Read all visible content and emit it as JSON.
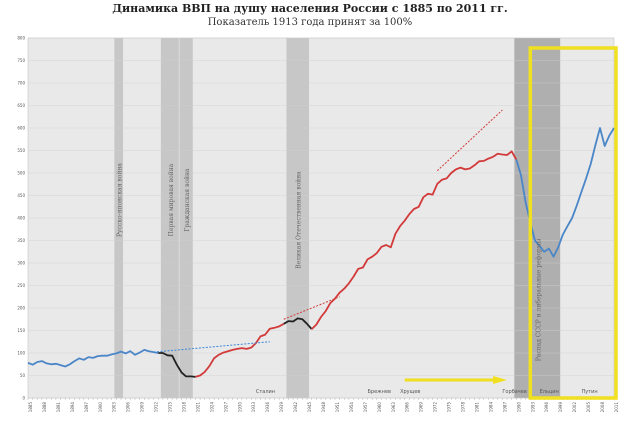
{
  "title": "Динамика ВВП на душу населения России с 1885 по 2011 гг.",
  "subtitle": "Показатель 1913 года принят за 100%",
  "chart_data": {
    "type": "line",
    "x_range": [
      1885,
      2011
    ],
    "ylim": [
      0,
      800
    ],
    "y_ticks": [
      0,
      50,
      100,
      150,
      200,
      250,
      300,
      350,
      400,
      450,
      500,
      550,
      600,
      650,
      700,
      750,
      800
    ],
    "grid": true,
    "series": [
      {
        "segment": "pre-revolution",
        "color": "#4a86c8",
        "x": [
          1885,
          1886,
          1887,
          1888,
          1889,
          1890,
          1891,
          1892,
          1893,
          1894,
          1895,
          1896,
          1897,
          1898,
          1899,
          1900,
          1901,
          1902,
          1903,
          1904,
          1905,
          1906,
          1907,
          1908,
          1909,
          1910,
          1911,
          1912,
          1913
        ],
        "y": [
          78,
          74,
          80,
          82,
          77,
          75,
          76,
          73,
          70,
          75,
          82,
          88,
          85,
          91,
          89,
          93,
          94,
          94,
          97,
          99,
          103,
          99,
          104,
          96,
          101,
          107,
          104,
          102,
          100
        ]
      },
      {
        "segment": "war-civil-war",
        "color": "#222222",
        "x": [
          1913,
          1914,
          1915,
          1916,
          1917,
          1918,
          1919,
          1920,
          1921
        ],
        "y": [
          100,
          100,
          95,
          94,
          74,
          57,
          48,
          48,
          47
        ]
      },
      {
        "segment": "soviet",
        "color": "#d23a3a",
        "x": [
          1921,
          1922,
          1923,
          1924,
          1925,
          1926,
          1927,
          1928,
          1929,
          1930,
          1931,
          1932,
          1933,
          1934,
          1935,
          1936,
          1937,
          1938,
          1939,
          1940
        ],
        "y": [
          47,
          50,
          58,
          71,
          88,
          96,
          101,
          104,
          107,
          109,
          111,
          109,
          112,
          122,
          137,
          141,
          154,
          156,
          159,
          165
        ]
      },
      {
        "segment": "ww2",
        "color": "#222222",
        "x": [
          1940,
          1941,
          1942,
          1943,
          1944,
          1945,
          1946
        ],
        "y": [
          165,
          171,
          170,
          177,
          175,
          165,
          153
        ]
      },
      {
        "segment": "soviet-postwar",
        "color": "#d23a3a",
        "x": [
          1946,
          1947,
          1948,
          1949,
          1950,
          1951,
          1952,
          1953,
          1954,
          1955,
          1956,
          1957,
          1958,
          1959,
          1960,
          1961,
          1962,
          1963,
          1964,
          1965,
          1966,
          1967,
          1968,
          1969,
          1970,
          1971,
          1972,
          1973,
          1974,
          1975,
          1976,
          1977,
          1978,
          1979,
          1980,
          1981,
          1982,
          1983,
          1984,
          1985,
          1986,
          1987,
          1988,
          1989,
          1990
        ],
        "y": [
          153,
          163,
          180,
          193,
          211,
          221,
          234,
          243,
          255,
          270,
          287,
          290,
          308,
          314,
          322,
          336,
          340,
          335,
          365,
          382,
          394,
          409,
          420,
          425,
          446,
          454,
          452,
          476,
          485,
          488,
          500,
          508,
          512,
          508,
          510,
          517,
          526,
          527,
          532,
          536,
          543,
          541,
          540,
          548,
          530
        ]
      },
      {
        "segment": "post-soviet",
        "color": "#4a86c8",
        "x": [
          1990,
          1991,
          1992,
          1993,
          1994,
          1995,
          1996,
          1997,
          1998,
          1999,
          2000,
          2001,
          2002,
          2003,
          2004,
          2005,
          2006,
          2007,
          2008,
          2009,
          2010,
          2011
        ],
        "y": [
          530,
          495,
          435,
          390,
          350,
          338,
          325,
          332,
          314,
          335,
          363,
          382,
          400,
          428,
          458,
          488,
          520,
          562,
          600,
          560,
          583,
          600
        ]
      }
    ],
    "shaded_periods": [
      {
        "from": 1904,
        "to": 1905,
        "label": "Русско-японская война"
      },
      {
        "from": 1914,
        "to": 1917,
        "label": "Первая мировая война"
      },
      {
        "from": 1918,
        "to": 1920,
        "label": "Гражданская война"
      },
      {
        "from": 1941,
        "to": 1945,
        "label": "Великая Отечественная война"
      },
      {
        "from": 1990,
        "to": 1999,
        "label": "Распад СССР и либеральные реформы"
      }
    ],
    "era_labels": [
      "Сталин",
      "Брежнев",
      "Хрущев",
      "Горбачев",
      "Ельцин",
      "Путин"
    ]
  }
}
